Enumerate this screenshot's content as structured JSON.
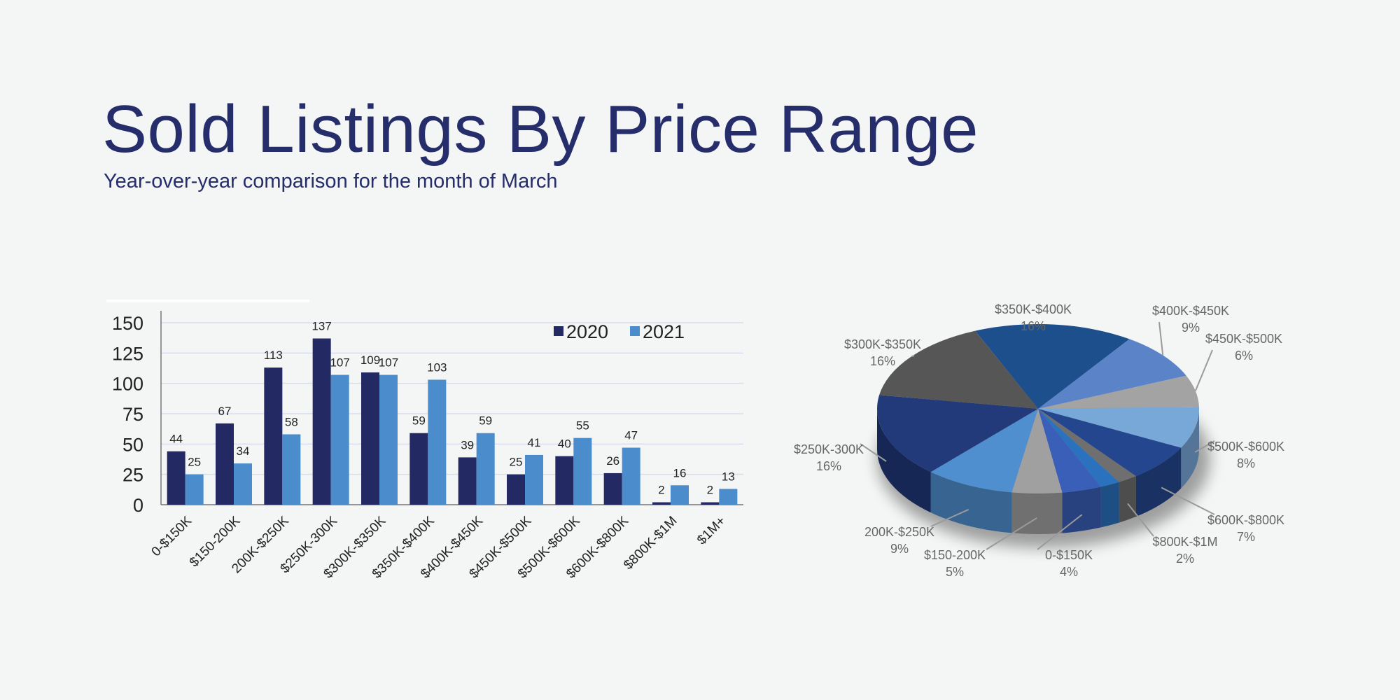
{
  "header": {
    "title": "Sold Listings By Price Range",
    "subtitle": "Year-over-year comparison for the month of March"
  },
  "chart_data": [
    {
      "type": "bar",
      "categories": [
        "0-$150K",
        "$150-200K",
        "200K-$250K",
        "$250K-300K",
        "$300K-$350K",
        "$350K-$400K",
        "$400K-$450K",
        "$450K-$500K",
        "$500K-$600K",
        "$600K-$800K",
        "$800K-$1M",
        "$1M+"
      ],
      "series": [
        {
          "name": "2020",
          "color": "#232a63",
          "values": [
            44,
            67,
            113,
            137,
            109,
            59,
            39,
            25,
            40,
            26,
            2,
            2
          ]
        },
        {
          "name": "2021",
          "color": "#4a8ccc",
          "values": [
            25,
            34,
            58,
            107,
            107,
            103,
            59,
            41,
            55,
            47,
            16,
            13
          ]
        }
      ],
      "yticks": [
        "0",
        "25",
        "50",
        "75",
        "100",
        "125",
        "150"
      ],
      "ylim": [
        0,
        150
      ],
      "grid": true,
      "legend": "top-right"
    },
    {
      "type": "pie",
      "style": "3d",
      "slices": [
        {
          "label": "$350K-$400K",
          "pct": "16%",
          "value": 16,
          "color": "#1d4f8c"
        },
        {
          "label": "$400K-$450K",
          "pct": "9%",
          "value": 9,
          "color": "#5b84c8"
        },
        {
          "label": "$450K-$500K",
          "pct": "6%",
          "value": 6,
          "color": "#a3a3a3"
        },
        {
          "label": "$500K-$600K",
          "pct": "8%",
          "value": 8,
          "color": "#78a8d8"
        },
        {
          "label": "$600K-$800K",
          "pct": "7%",
          "value": 7,
          "color": "#24468e"
        },
        {
          "label": "$800K-$1M",
          "pct": "2%",
          "value": 2,
          "color": "#6f6f6f"
        },
        {
          "label": "",
          "pct": "",
          "value": 2,
          "color": "#2a72bd"
        },
        {
          "label": "0-$150K",
          "pct": "4%",
          "value": 4,
          "color": "#3a5fb8"
        },
        {
          "label": "$150-200K",
          "pct": "5%",
          "value": 5,
          "color": "#a0a0a0"
        },
        {
          "label": "200K-$250K",
          "pct": "9%",
          "value": 9,
          "color": "#4f8fcf"
        },
        {
          "label": "$250K-300K",
          "pct": "16%",
          "value": 16,
          "color": "#22397a"
        },
        {
          "label": "$300K-$350K",
          "pct": "16%",
          "value": 16,
          "color": "#565656"
        }
      ]
    }
  ]
}
